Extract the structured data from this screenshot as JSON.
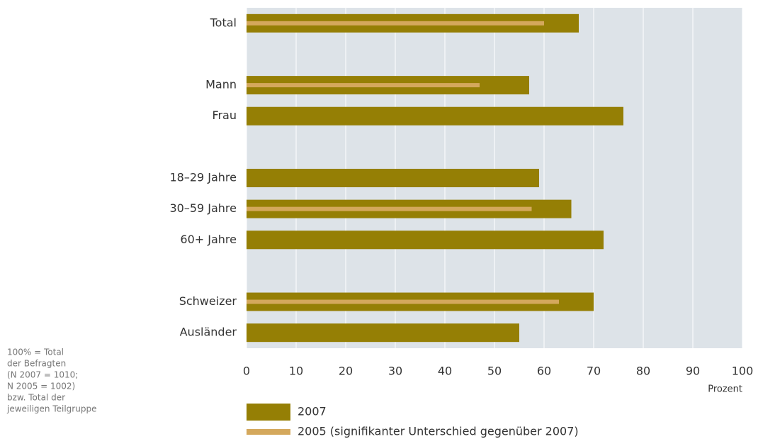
{
  "chart_data": {
    "type": "bar",
    "orientation": "horizontal",
    "categories": [
      "Total",
      null,
      "Mann",
      "Frau",
      null,
      "18–29 Jahre",
      "30–59 Jahre",
      "60+ Jahre",
      null,
      "Schweizer",
      "Ausländer"
    ],
    "series": [
      {
        "name": "2007",
        "color": "#957f05",
        "values": [
          67,
          null,
          57,
          76,
          null,
          59,
          65.5,
          72,
          null,
          70,
          55
        ]
      },
      {
        "name": "2005 (signifikanter Unterschied gegenüber 2007)",
        "color": "#d4a85c",
        "values": [
          60,
          null,
          47,
          null,
          null,
          null,
          57.5,
          null,
          null,
          63,
          null
        ]
      }
    ],
    "xlim": [
      0,
      100
    ],
    "xticks": [
      0,
      10,
      20,
      30,
      40,
      50,
      60,
      70,
      80,
      90,
      100
    ],
    "xlabel": "Prozent",
    "grid": true,
    "plot_background": "#dde3e8",
    "note": [
      "100% = Total",
      "der Befragten",
      "(N 2007 = 1010;",
      "N 2005 = 1002)",
      "bzw. Total der",
      "jeweiligen Teilgruppe"
    ]
  }
}
